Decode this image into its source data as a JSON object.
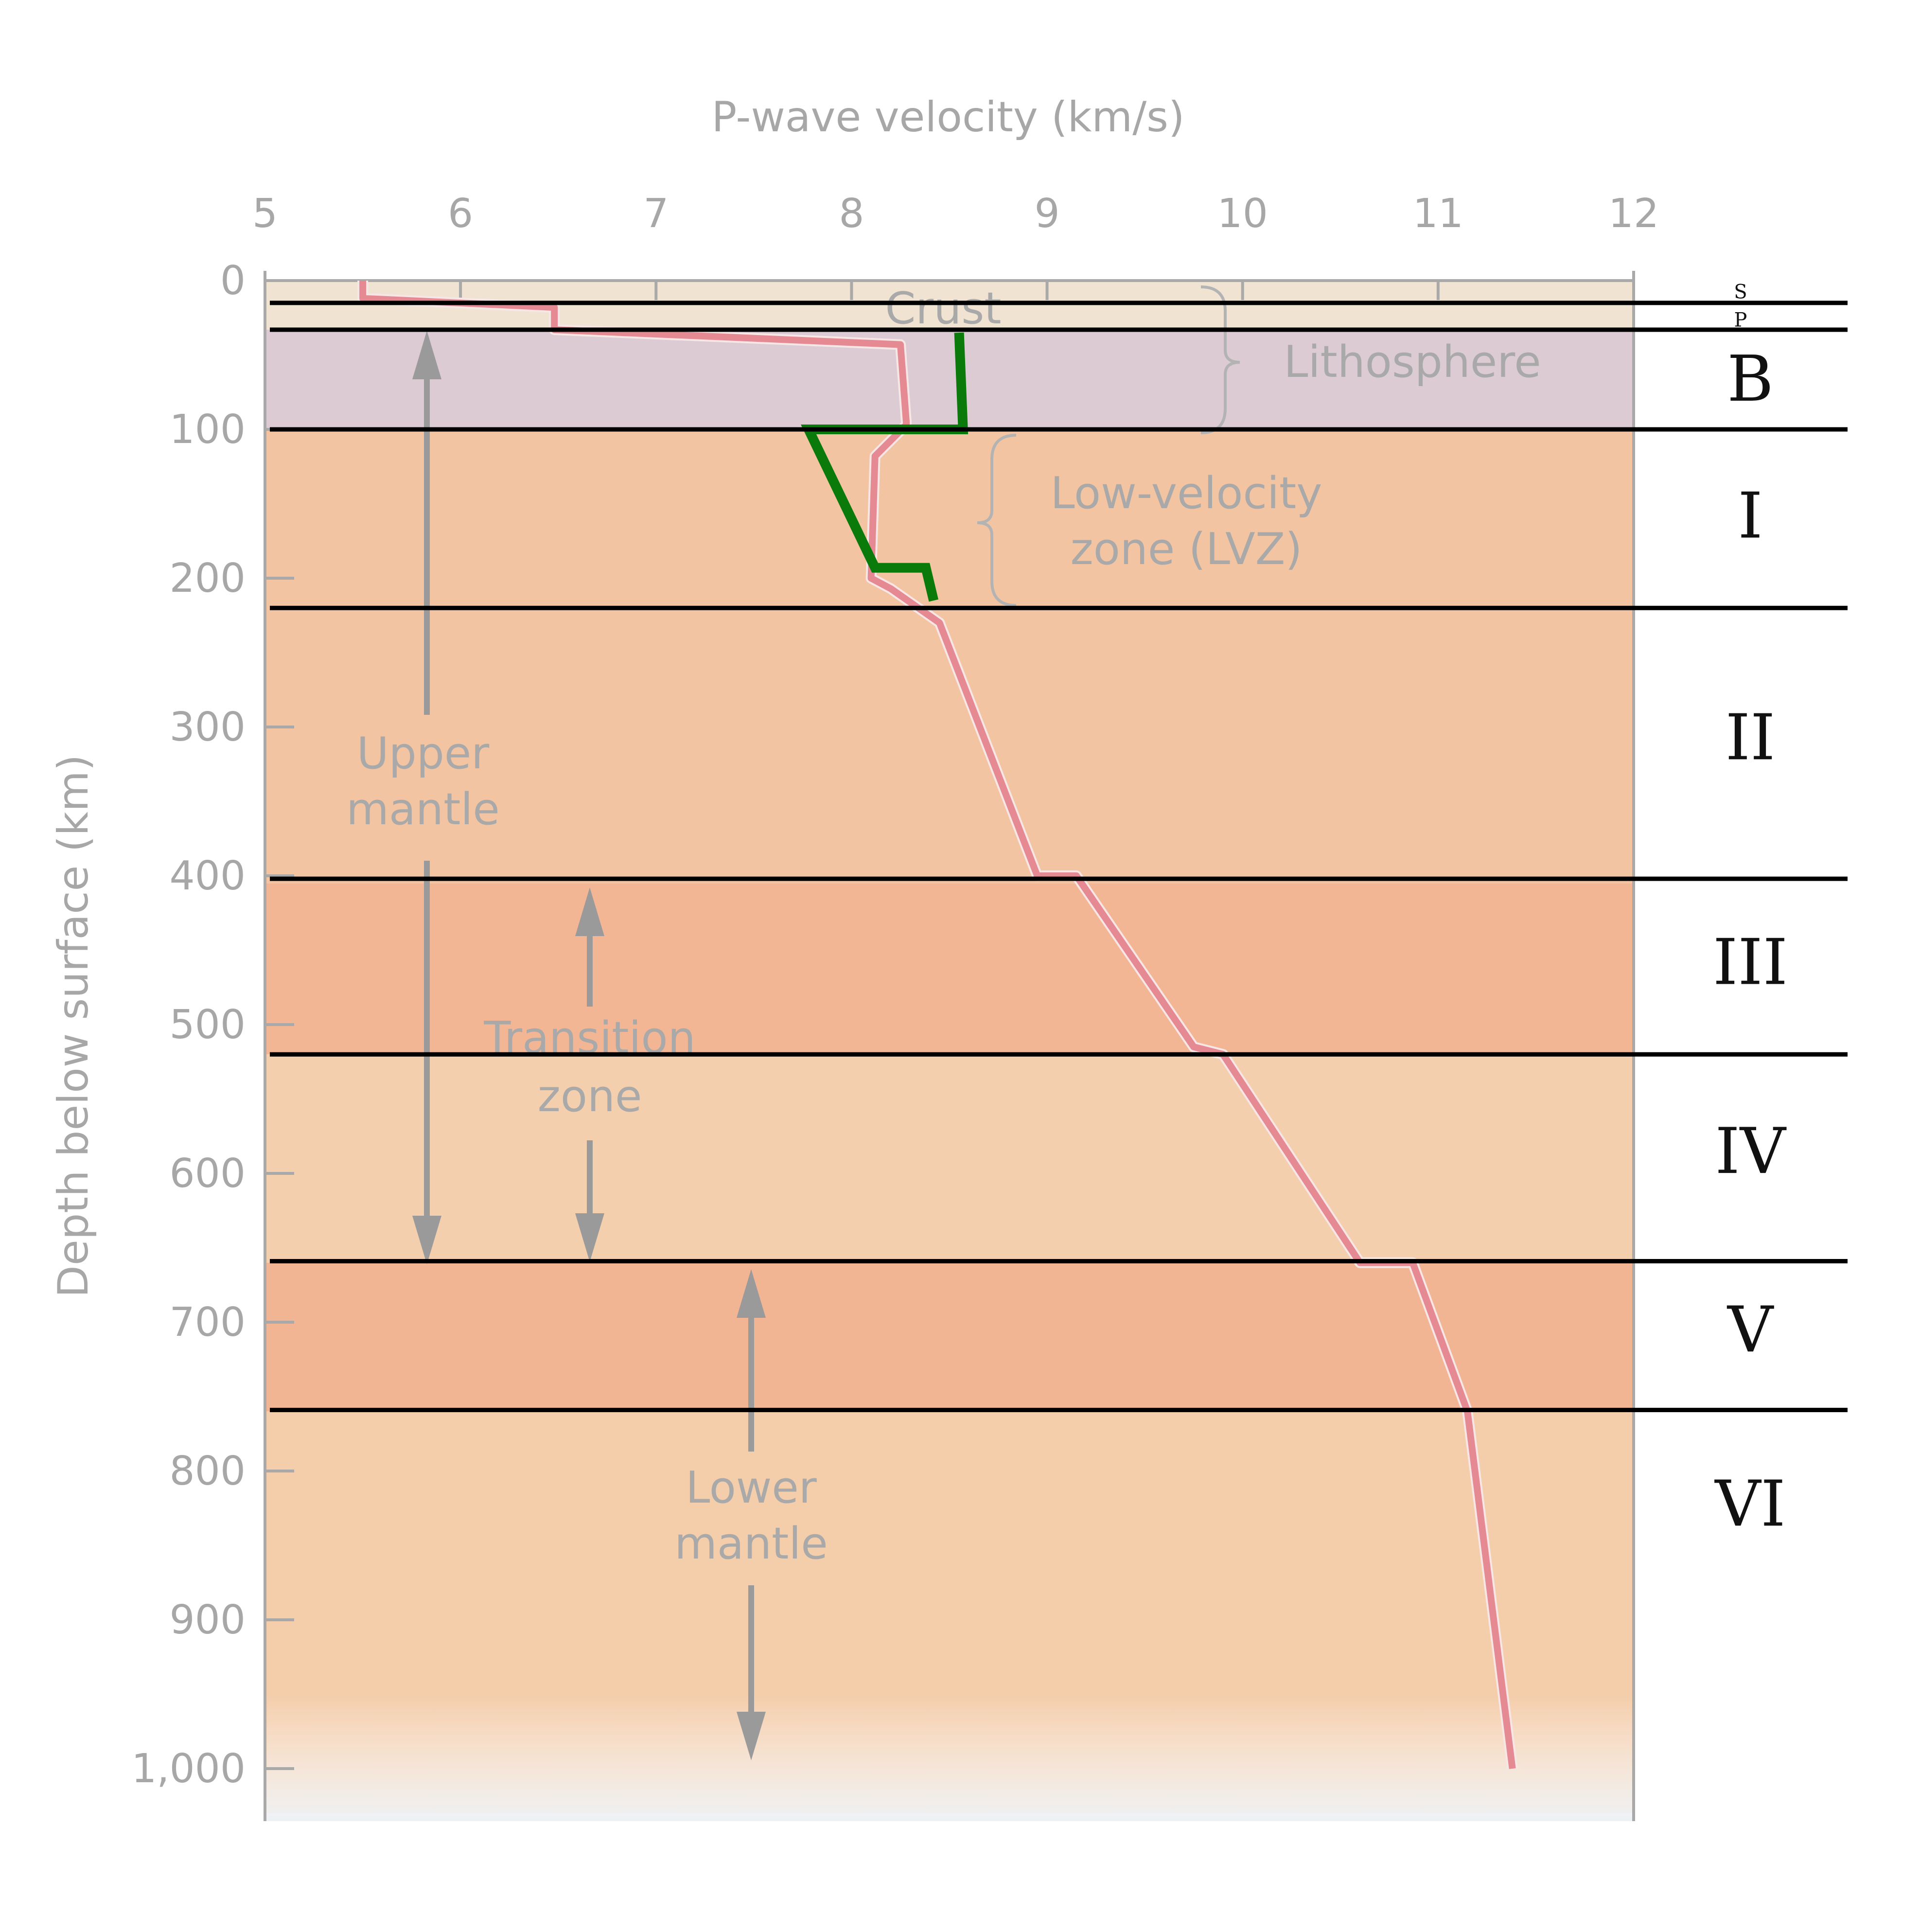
{
  "chart_data": {
    "type": "line",
    "xlabel": "P-wave velocity (km/s)",
    "ylabel": "Depth below surface (km)",
    "xlim": [
      5,
      12
    ],
    "ylim": [
      0,
      1030
    ],
    "x_axis_position": "top",
    "y_axis_inverted": true,
    "xticks": [
      5,
      6,
      7,
      8,
      9,
      10,
      11,
      12
    ],
    "xtick_labels": [
      "5",
      "6",
      "7",
      "8",
      "9",
      "10",
      "11",
      "12"
    ],
    "yticks": [
      0,
      100,
      200,
      300,
      400,
      500,
      600,
      700,
      800,
      900,
      1000
    ],
    "ytick_labels": [
      "0",
      "100",
      "200",
      "300",
      "400",
      "500",
      "600",
      "700",
      "800",
      "900",
      "1,000"
    ],
    "series": [
      {
        "color": "#e58a92",
        "points": [
          [
            5.5,
            0
          ],
          [
            5.5,
            12
          ],
          [
            6.48,
            18
          ],
          [
            6.48,
            33
          ],
          [
            8.25,
            43
          ],
          [
            8.28,
            95
          ],
          [
            8.28,
            97
          ],
          [
            8.12,
            118
          ],
          [
            8.1,
            200
          ],
          [
            8.2,
            207
          ],
          [
            8.45,
            230
          ],
          [
            8.95,
            400
          ],
          [
            9.15,
            400
          ],
          [
            9.75,
            515
          ],
          [
            9.9,
            520
          ],
          [
            10.6,
            660
          ],
          [
            10.87,
            660
          ],
          [
            11.15,
            760
          ],
          [
            11.38,
            1000
          ]
        ]
      },
      {
        "color": "#0a7a0a",
        "points": [
          [
            8.55,
            35
          ],
          [
            8.57,
            100
          ],
          [
            7.78,
            100
          ],
          [
            8.12,
            193
          ],
          [
            8.38,
            193
          ],
          [
            8.42,
            215
          ]
        ]
      }
    ],
    "layers": [
      {
        "from": 0,
        "to": 33,
        "color": "#f1e3d2"
      },
      {
        "from": 33,
        "to": 100,
        "color": "#dccbd3"
      },
      {
        "from": 100,
        "to": 405,
        "color": "#f3c4a2"
      },
      {
        "from": 405,
        "to": 520,
        "color": "#f3b694"
      },
      {
        "from": 520,
        "to": 660,
        "color": "#f4cfae"
      },
      {
        "from": 660,
        "to": 760,
        "color": "#f2b593"
      },
      {
        "from": 760,
        "to": 1030,
        "color": "#f4cdab"
      }
    ],
    "boundaries": [
      15,
      33,
      100,
      220,
      402,
      520,
      659,
      759
    ],
    "zone_labels": [
      {
        "text": "S",
        "depth": 7
      },
      {
        "text": "P",
        "depth": 26
      },
      {
        "text": "B",
        "depth": 66
      },
      {
        "text": "I",
        "depth": 158
      },
      {
        "text": "II",
        "depth": 307
      },
      {
        "text": "III",
        "depth": 458
      },
      {
        "text": "IV",
        "depth": 585
      },
      {
        "text": "V",
        "depth": 705
      },
      {
        "text": "VI",
        "depth": 822
      }
    ],
    "annotations": {
      "crust": "Crust",
      "lithosphere": "Lithosphere",
      "lvz_line1": "Low-velocity",
      "lvz_line2": "zone (LVZ)",
      "upper_mantle_line1": "Upper",
      "upper_mantle_line2": "mantle",
      "transition_line1": "Transition",
      "transition_line2": "zone",
      "lower_mantle_line1": "Lower",
      "lower_mantle_line2": "mantle"
    }
  }
}
